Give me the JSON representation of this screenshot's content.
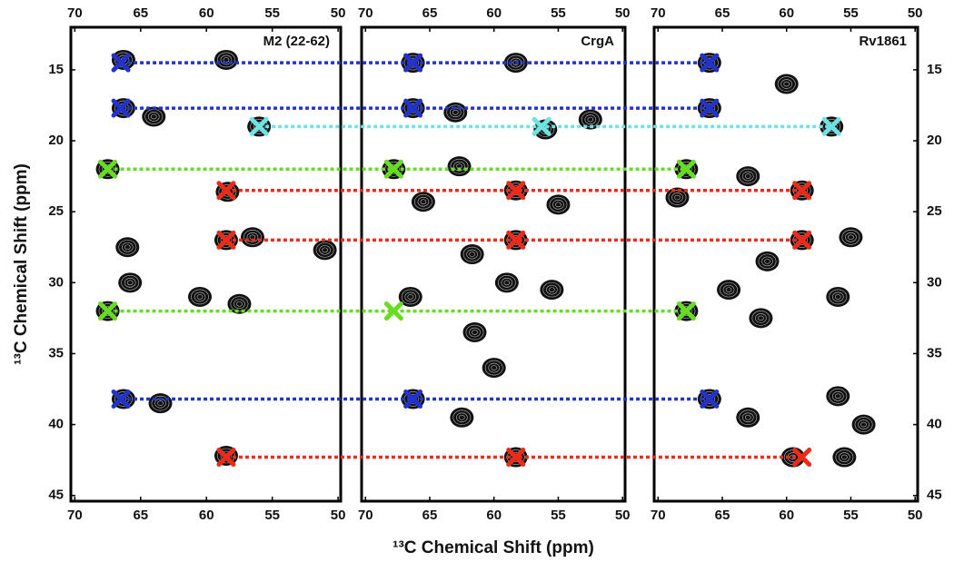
{
  "chart_data": [
    {
      "type": "scatter",
      "title": "M2 (22-62)",
      "ylabel": "¹³C Chemical Shift  (ppm)",
      "xlim": [
        70.3,
        49.8
      ],
      "ylim": [
        12,
        45.4
      ],
      "xticks": [
        70,
        65,
        60,
        55,
        50
      ],
      "yticks": [
        15,
        20,
        25,
        30,
        35,
        40,
        45
      ],
      "peaks": {
        "x": [
          66.3,
          66.3,
          64,
          56,
          67.5,
          58.4,
          58.5,
          56.5,
          66,
          65.8,
          67.5,
          60.5,
          57.5,
          66.3,
          63.5,
          58.5,
          51,
          58.5
        ],
        "y": [
          14.3,
          17.7,
          18.3,
          19,
          22,
          23.6,
          27,
          26.8,
          27.5,
          30,
          32,
          31,
          31.5,
          38.2,
          38.5,
          42.2,
          27.7,
          14.3
        ]
      },
      "series": [
        {
          "color": "#2233cc",
          "x": [
            66.5,
            66.5,
            66.5
          ],
          "values": [
            14.5,
            17.7,
            38.2
          ]
        },
        {
          "color": "#6fe3e3",
          "x": [
            56
          ],
          "values": [
            19
          ]
        },
        {
          "color": "#66dd22",
          "x": [
            67.5,
            67.5
          ],
          "values": [
            22,
            32
          ]
        },
        {
          "color": "#ee2b1b",
          "x": [
            58.5,
            58.5,
            58.5
          ],
          "values": [
            23.5,
            27,
            42.3
          ]
        }
      ]
    },
    {
      "type": "scatter",
      "title": "CrgA",
      "xlabel": "¹³C Chemical Shift (ppm)",
      "xlim": [
        70.3,
        49.8
      ],
      "ylim": [
        12,
        45.4
      ],
      "xticks": [
        70,
        65,
        60,
        55,
        50
      ],
      "peaks": {
        "x": [
          66.3,
          66.3,
          63,
          58.3,
          56,
          67.8,
          62.7,
          58.3,
          58.3,
          61.7,
          59,
          55.5,
          66.5,
          61.5,
          60,
          66.3,
          62.5,
          58.3,
          52.5,
          65.5,
          55
        ],
        "y": [
          14.5,
          17.7,
          18,
          14.5,
          19.2,
          22,
          21.8,
          23.5,
          27,
          28,
          30,
          30.5,
          31,
          33.5,
          36,
          38.2,
          39.5,
          42.3,
          18.5,
          24.3,
          24.5
        ]
      },
      "series": [
        {
          "color": "#2233cc",
          "x": [
            66.3,
            66.3,
            66.3
          ],
          "values": [
            14.5,
            17.7,
            38.2
          ]
        },
        {
          "color": "#6fe3e3",
          "x": [
            56.3
          ],
          "values": [
            19
          ]
        },
        {
          "color": "#66dd22",
          "x": [
            67.8,
            67.8
          ],
          "values": [
            22,
            32
          ]
        },
        {
          "color": "#ee2b1b",
          "x": [
            58.3,
            58.3,
            58.3
          ],
          "values": [
            23.5,
            27,
            42.3
          ]
        }
      ]
    },
    {
      "type": "scatter",
      "title": "Rv1861",
      "xlim": [
        70.3,
        49.8
      ],
      "ylim": [
        12,
        45.4
      ],
      "xticks": [
        70,
        65,
        60,
        55,
        50
      ],
      "yticks": [
        15,
        20,
        25,
        30,
        35,
        40,
        45
      ],
      "peaks": {
        "x": [
          66,
          66,
          60,
          56.5,
          67.8,
          68.5,
          63,
          58.8,
          58.8,
          61.5,
          64.5,
          56,
          67.8,
          62,
          66,
          63,
          56,
          54,
          59.5,
          55.5,
          55
        ],
        "y": [
          14.5,
          17.7,
          16,
          19,
          22,
          24,
          22.5,
          23.5,
          27,
          28.5,
          30.5,
          31,
          32,
          32.5,
          38.2,
          39.5,
          38,
          40,
          42.3,
          42.3,
          26.8
        ]
      },
      "series": [
        {
          "color": "#2233cc",
          "x": [
            66,
            66,
            66
          ],
          "values": [
            14.5,
            17.7,
            38.2
          ]
        },
        {
          "color": "#6fe3e3",
          "x": [
            56.5
          ],
          "values": [
            19
          ]
        },
        {
          "color": "#66dd22",
          "x": [
            67.8,
            67.8
          ],
          "values": [
            22,
            32
          ]
        },
        {
          "color": "#ee2b1b",
          "x": [
            58.8,
            58.8,
            58.8
          ],
          "values": [
            23.5,
            27,
            42.3
          ]
        }
      ]
    }
  ]
}
